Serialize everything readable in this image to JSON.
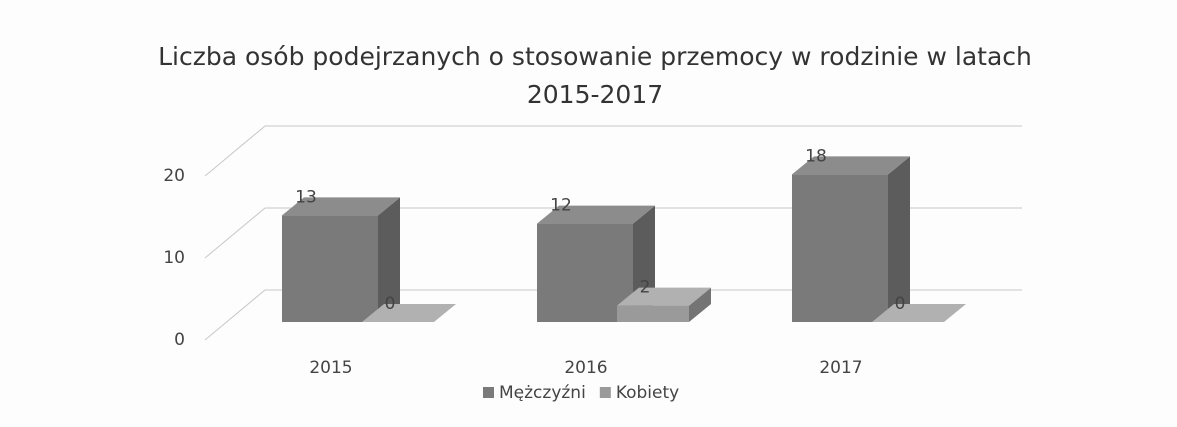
{
  "chart_data": {
    "type": "bar3d",
    "title": "Liczba osób podejrzanych o stosowanie przemocy w rodzinie w latach 2015-2017",
    "categories": [
      "2015",
      "2016",
      "2017"
    ],
    "series": [
      {
        "name": "Mężczyźni",
        "color": "#7a7a7a",
        "values": [
          13,
          12,
          18
        ]
      },
      {
        "name": "Kobiety",
        "color": "#9a9a9a",
        "values": [
          0,
          2,
          0
        ]
      }
    ],
    "ylim": [
      0,
      20
    ],
    "yticks": [
      0,
      10,
      20
    ],
    "grid": true,
    "legend": "bottom"
  }
}
